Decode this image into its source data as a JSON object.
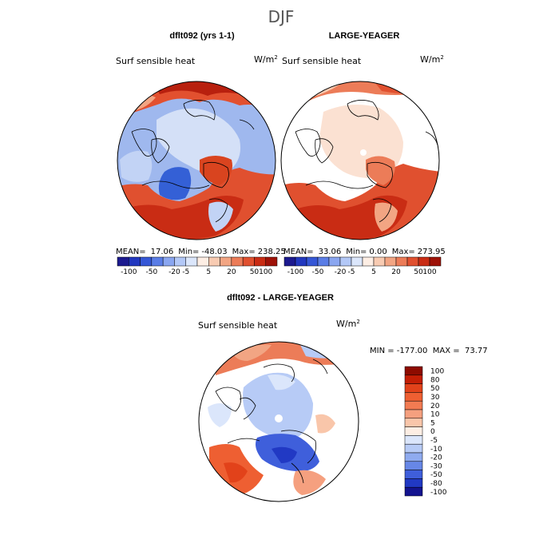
{
  "page_title": "DJF",
  "panels": [
    {
      "title": "dflt092 (yrs 1-1)",
      "variable": "Surf sensible heat",
      "units": "W/m",
      "units_exp": "2",
      "stats": {
        "mean_label": "MEAN=",
        "mean": "17.06",
        "min_label": "Min=",
        "min": "-48.03",
        "max_label": "Max=",
        "max": "238.25"
      }
    },
    {
      "title": "LARGE-YEAGER",
      "variable": "Surf sensible heat",
      "units": "W/m",
      "units_exp": "2",
      "stats": {
        "mean_label": "MEAN=",
        "mean": "33.06",
        "min_label": "Min=",
        "min": "0.00",
        "max_label": "Max=",
        "max": "273.95"
      }
    },
    {
      "title": "dflt092 - LARGE-YEAGER",
      "variable": "Surf sensible heat",
      "units": "W/m",
      "units_exp": "2",
      "stats_text": "MIN = -177.00  MAX =  73.77"
    }
  ],
  "colorbar_top": {
    "labels": [
      "-100",
      "-50",
      "-20",
      "-5",
      "5",
      "20",
      "50",
      "100"
    ],
    "colors": [
      "#1c1a8f",
      "#2238bf",
      "#3557d6",
      "#5a7de6",
      "#8aa6f0",
      "#b3c8f7",
      "#dbe6fb",
      "#fdeee4",
      "#f8cbb2",
      "#f2a583",
      "#ec7c58",
      "#e0502f",
      "#c92c14",
      "#9e1208"
    ]
  },
  "colorbar_diff": {
    "labels": [
      "100",
      "80",
      "50",
      "30",
      "20",
      "10",
      "5",
      "0",
      "-5",
      "-10",
      "-20",
      "-30",
      "-50",
      "-80",
      "-100"
    ],
    "colors": [
      "#8e0b00",
      "#c41e05",
      "#e2421a",
      "#ee5f32",
      "#f27b52",
      "#f5a07f",
      "#f9c6aa",
      "#fdeee4",
      "#dbe6fb",
      "#b7cbf6",
      "#8fabef",
      "#6787e6",
      "#3f5fdb",
      "#2139c4",
      "#13138f"
    ]
  }
}
